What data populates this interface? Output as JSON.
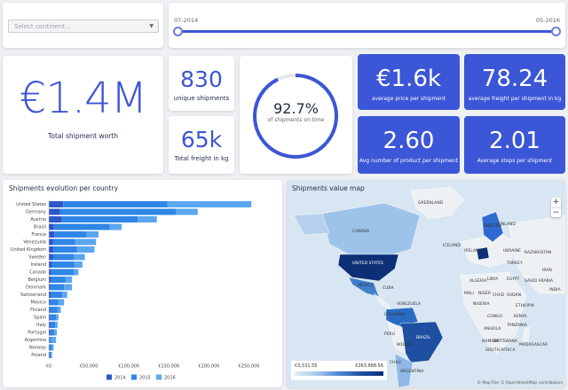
{
  "filter": {
    "placeholder": "Select continent...",
    "chevron_icon": "chevron-down-icon"
  },
  "slider": {
    "start_label": "07-2014",
    "end_label": "05-2016"
  },
  "kpis": {
    "total_worth": {
      "value": "€1.4M",
      "label": "Total shipment worth"
    },
    "unique_shipments": {
      "value": "830",
      "label": "unique shipments"
    },
    "total_freight": {
      "value": "65k",
      "label": "Total freight in kg"
    },
    "on_time": {
      "value": "92.7%",
      "label": "of shipments on time",
      "fraction": 0.927
    },
    "avg_price": {
      "value": "€1.6k",
      "label": "average price per shipment"
    },
    "avg_freight": {
      "value": "78.24",
      "label": "average freight per shipment in kg"
    },
    "avg_products": {
      "value": "2.60",
      "label": "Avg number of product per shipment"
    },
    "avg_stops": {
      "value": "2.01",
      "label": "Average stops per shipment"
    }
  },
  "chart_data": {
    "type": "bar",
    "orientation": "horizontal",
    "stacked": true,
    "title": "Shipments evolution per country",
    "categories": [
      "United States",
      "Germany",
      "Austria",
      "Brazil",
      "France",
      "Venezuela",
      "United Kingdom",
      "Sweden",
      "Ireland",
      "Canada",
      "Belgium",
      "Denmark",
      "Switzerland",
      "Mexico",
      "Finland",
      "Spain",
      "Italy",
      "Portugal",
      "Argentina",
      "Norway",
      "Poland"
    ],
    "series": [
      {
        "name": "2014",
        "color": "#2f56c8",
        "values": [
          18000,
          14000,
          16000,
          6000,
          7000,
          5000,
          5000,
          5000,
          4000,
          3000,
          3000,
          2000,
          3000,
          2000,
          2000,
          2000,
          2000,
          2000,
          0,
          1000,
          1000
        ]
      },
      {
        "name": "2015",
        "color": "#2f86e6",
        "values": [
          130000,
          145000,
          95000,
          70000,
          40000,
          28000,
          30000,
          26000,
          28000,
          28000,
          18000,
          17000,
          14000,
          10000,
          9000,
          7000,
          6000,
          5000,
          3000,
          3000,
          2000
        ]
      },
      {
        "name": "2016",
        "color": "#5aa6ef",
        "values": [
          105000,
          27000,
          24000,
          15000,
          15000,
          26000,
          22000,
          14000,
          10000,
          6000,
          8000,
          10000,
          6000,
          7000,
          4000,
          3000,
          3000,
          3000,
          6000,
          2000,
          1000
        ]
      }
    ],
    "xticks": [
      "€0",
      "€50,000",
      "€100,000",
      "€150,000",
      "€200,000",
      "€250,000"
    ],
    "xlim": [
      0,
      275000
    ],
    "legend": "bottom"
  },
  "map": {
    "title": "Shipments value map",
    "legend_min": "€3,531.55",
    "legend_max": "€263,888.56",
    "attribution": "© MapTiler © OpenStreetMap contributors",
    "zoom_in": "+",
    "zoom_out": "−",
    "labels": [
      "GREENLAND",
      "ICELAND",
      "SWEDEN",
      "FINLAND",
      "CANADA",
      "UNITED STATES",
      "MEXICO",
      "CUBA",
      "VENEZUELA",
      "COLOMBIA",
      "PERU",
      "BRAZIL",
      "BOLIVIA",
      "CHILE",
      "ARGENTINA",
      "IRELAND",
      "ALGERIA",
      "LIBYA",
      "EGYPT",
      "MALI",
      "NIGER",
      "CHAD",
      "SUDAN",
      "NIGERIA",
      "ETHIOPIA",
      "KENYA",
      "CONGO",
      "TANZANIA",
      "ANGOLA",
      "NAMIBIA",
      "BOTSWANA",
      "SOUTH AFRICA",
      "SAUDI ARABIA",
      "IRAN",
      "KAZAKHSTAN",
      "INDIA",
      "TURKEY",
      "UKRAINE",
      "MADAGASCAR"
    ]
  }
}
